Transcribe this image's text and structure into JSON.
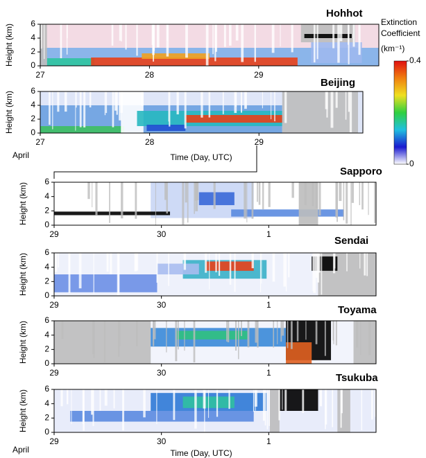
{
  "chart_data": [
    {
      "type": "heatmap",
      "title": "Hohhot",
      "ylabel": "Height (km)",
      "ylim": [
        0,
        6
      ],
      "yticks": [
        0,
        2,
        4,
        6
      ],
      "xlim": [
        27,
        30.1
      ],
      "xticks": [
        27,
        28,
        29
      ],
      "colorbar": {
        "label": [
          "Extinction",
          "Coefficient",
          "(km⁻¹)"
        ],
        "lim": [
          0,
          0.4
        ],
        "ticks": [
          0,
          0.4
        ],
        "colors": [
          "#ffffff",
          "#1a1ad0",
          "#20c0e0",
          "#30d040",
          "#f0e020",
          "#f08010",
          "#e01010"
        ]
      }
    },
    {
      "type": "heatmap",
      "title": "Beijing",
      "ylabel": "Height (km)",
      "ylim": [
        0,
        6
      ],
      "yticks": [
        0,
        2,
        4,
        6
      ],
      "xlim": [
        27,
        29.95
      ],
      "xticks": [
        27,
        28,
        29
      ],
      "month_label": "April",
      "xlabel": "Time (Day, UTC)"
    },
    {
      "type": "heatmap",
      "title": "Sapporo",
      "ylabel": "Height (km)",
      "ylim": [
        0,
        6
      ],
      "yticks": [
        0,
        2,
        4,
        6
      ],
      "xlim": [
        29,
        32
      ],
      "xticks": [
        29,
        30,
        {
          "value": 31,
          "label": "1"
        }
      ]
    },
    {
      "type": "heatmap",
      "title": "Sendai",
      "ylabel": "Height (km)",
      "ylim": [
        0,
        6
      ],
      "yticks": [
        0,
        2,
        4,
        6
      ],
      "xlim": [
        29,
        32
      ],
      "xticks": [
        29,
        30,
        {
          "value": 31,
          "label": "1"
        }
      ]
    },
    {
      "type": "heatmap",
      "title": "Toyama",
      "ylabel": "Height (km)",
      "ylim": [
        0,
        6
      ],
      "yticks": [
        0,
        2,
        4,
        6
      ],
      "xlim": [
        29,
        32
      ],
      "xticks": [
        29,
        30,
        {
          "value": 31,
          "label": "1"
        }
      ]
    },
    {
      "type": "heatmap",
      "title": "Tsukuba",
      "ylabel": "Height (km)",
      "ylim": [
        0,
        6
      ],
      "yticks": [
        0,
        2,
        4,
        6
      ],
      "xlim": [
        29,
        32
      ],
      "xticks": [
        29,
        30,
        {
          "value": 31,
          "label": "1"
        }
      ],
      "month_label": "April",
      "xlabel": "Time (Day, UTC)"
    }
  ]
}
